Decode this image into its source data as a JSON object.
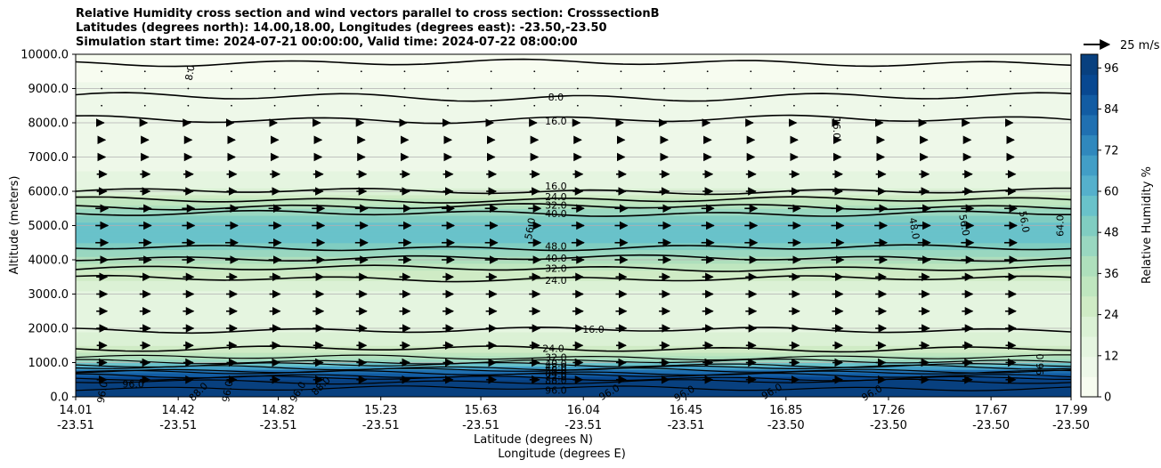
{
  "chart_data": {
    "type": "heatmap",
    "title": [
      "Relative Humidity cross section and wind vectors parallel to cross section: CrosssectionB",
      "Latitudes (degrees north): 14.00,18.00, Longitudes (degrees east): -23.50,-23.50",
      "Simulation start time: 2024-07-21 00:00:00, Valid time: 2024-07-22 08:00:00"
    ],
    "ylabel": "Altitude (meters)",
    "xlabel": "Latitude (degrees N)",
    "xlabel2": "Longitude (degrees E)",
    "ylim": [
      0,
      10000
    ],
    "xlim": [
      14.01,
      17.99
    ],
    "yticks": [
      "0.0",
      "1000.0",
      "2000.0",
      "3000.0",
      "4000.0",
      "5000.0",
      "6000.0",
      "7000.0",
      "8000.0",
      "9000.0",
      "10000.0"
    ],
    "xticks": [
      {
        "lat": "14.01",
        "lon": "-23.51"
      },
      {
        "lat": "14.42",
        "lon": "-23.51"
      },
      {
        "lat": "14.82",
        "lon": "-23.51"
      },
      {
        "lat": "15.23",
        "lon": "-23.51"
      },
      {
        "lat": "15.63",
        "lon": "-23.51"
      },
      {
        "lat": "16.04",
        "lon": "-23.51"
      },
      {
        "lat": "16.45",
        "lon": "-23.51"
      },
      {
        "lat": "16.85",
        "lon": "-23.50"
      },
      {
        "lat": "17.26",
        "lon": "-23.50"
      },
      {
        "lat": "17.67",
        "lon": "-23.50"
      },
      {
        "lat": "17.99",
        "lon": "-23.50"
      }
    ],
    "grid": "horizontal",
    "colorbar": {
      "label": "Relative Humidity %",
      "ticks": [
        "0",
        "12",
        "24",
        "36",
        "48",
        "60",
        "72",
        "84",
        "96"
      ],
      "range": [
        0,
        100
      ],
      "colors": [
        "#f7fcf0",
        "#eef8e9",
        "#e5f5e0",
        "#dbf1d5",
        "#cfebc5",
        "#bfe6bf",
        "#aedfbc",
        "#99d7c0",
        "#80cdc1",
        "#69c2ca",
        "#55b0cc",
        "#429ec6",
        "#3088bd",
        "#2070b1",
        "#125ca3",
        "#084891",
        "#08407f"
      ]
    },
    "wind_key": "25 m/s",
    "rh_profile": [
      {
        "alt": 0,
        "rh": 99
      },
      {
        "alt": 300,
        "rh": 97
      },
      {
        "alt": 600,
        "rh": 92
      },
      {
        "alt": 850,
        "rh": 70
      },
      {
        "alt": 1100,
        "rh": 38
      },
      {
        "alt": 1500,
        "rh": 24
      },
      {
        "alt": 2000,
        "rh": 16
      },
      {
        "alt": 2600,
        "rh": 12
      },
      {
        "alt": 3100,
        "rh": 18
      },
      {
        "alt": 3600,
        "rh": 28
      },
      {
        "alt": 4100,
        "rh": 42
      },
      {
        "alt": 4600,
        "rh": 56
      },
      {
        "alt": 5000,
        "rh": 58
      },
      {
        "alt": 5500,
        "rh": 40
      },
      {
        "alt": 6000,
        "rh": 20
      },
      {
        "alt": 6500,
        "rh": 12
      },
      {
        "alt": 7500,
        "rh": 10
      },
      {
        "alt": 8500,
        "rh": 8
      },
      {
        "alt": 9500,
        "rh": 5
      },
      {
        "alt": 10000,
        "rh": 3
      }
    ],
    "contour_labels": [
      {
        "text": "8.0",
        "lat": 14.48,
        "alt": 9550,
        "rot": -80
      },
      {
        "text": "8.0",
        "lat": 15.93,
        "alt": 8750,
        "rot": 0
      },
      {
        "text": "16.0",
        "lat": 15.93,
        "alt": 8050,
        "rot": 0
      },
      {
        "text": "16.0",
        "lat": 17.04,
        "alt": 7950,
        "rot": 90
      },
      {
        "text": "16.0",
        "lat": 15.93,
        "alt": 6150,
        "rot": 0
      },
      {
        "text": "24.0",
        "lat": 15.93,
        "alt": 5850,
        "rot": 0
      },
      {
        "text": "32.0",
        "lat": 15.93,
        "alt": 5600,
        "rot": 0
      },
      {
        "text": "40.0",
        "lat": 15.93,
        "alt": 5350,
        "rot": 0
      },
      {
        "text": "56.0",
        "lat": 15.84,
        "alt": 5000,
        "rot": -80
      },
      {
        "text": "48.0",
        "lat": 15.93,
        "alt": 4400,
        "rot": 0
      },
      {
        "text": "40.0",
        "lat": 15.93,
        "alt": 4050,
        "rot": 0
      },
      {
        "text": "32.0",
        "lat": 15.93,
        "alt": 3750,
        "rot": 0
      },
      {
        "text": "24.0",
        "lat": 15.93,
        "alt": 3400,
        "rot": 0
      },
      {
        "text": "48.0",
        "lat": 17.35,
        "alt": 5000,
        "rot": 80
      },
      {
        "text": "56.0",
        "lat": 17.55,
        "alt": 5100,
        "rot": 80
      },
      {
        "text": "56.0",
        "lat": 17.79,
        "alt": 5200,
        "rot": 80
      },
      {
        "text": "64.0",
        "lat": 17.96,
        "alt": 5100,
        "rot": -90
      },
      {
        "text": "16.0",
        "lat": 16.08,
        "alt": 1980,
        "rot": 0
      },
      {
        "text": "24.0",
        "lat": 15.92,
        "alt": 1420,
        "rot": 0
      },
      {
        "text": "32.0",
        "lat": 15.93,
        "alt": 1150,
        "rot": 0
      },
      {
        "text": "40.0",
        "lat": 15.93,
        "alt": 980,
        "rot": 0
      },
      {
        "text": "48.0",
        "lat": 15.93,
        "alt": 880,
        "rot": 0
      },
      {
        "text": "56.0",
        "lat": 15.93,
        "alt": 780,
        "rot": 0
      },
      {
        "text": "64.0",
        "lat": 15.93,
        "alt": 680,
        "rot": 0
      },
      {
        "text": "72.0",
        "lat": 15.93,
        "alt": 580,
        "rot": 0
      },
      {
        "text": "88.0",
        "lat": 15.93,
        "alt": 480,
        "rot": 0
      },
      {
        "text": "96.0",
        "lat": 15.93,
        "alt": 200,
        "rot": 0
      },
      {
        "text": "96.0",
        "lat": 14.24,
        "alt": 380,
        "rot": 0
      },
      {
        "text": "96.0",
        "lat": 14.13,
        "alt": 220,
        "rot": -80
      },
      {
        "text": "88.0",
        "lat": 14.51,
        "alt": 180,
        "rot": -45
      },
      {
        "text": "96.0",
        "lat": 14.63,
        "alt": 250,
        "rot": -80
      },
      {
        "text": "96.0",
        "lat": 14.91,
        "alt": 200,
        "rot": -60
      },
      {
        "text": "88.0",
        "lat": 15.0,
        "alt": 350,
        "rot": -45
      },
      {
        "text": "96.0",
        "lat": 16.15,
        "alt": 150,
        "rot": -30
      },
      {
        "text": "96.0",
        "lat": 16.45,
        "alt": 120,
        "rot": -30
      },
      {
        "text": "96.0",
        "lat": 16.8,
        "alt": 180,
        "rot": -30
      },
      {
        "text": "96.0",
        "lat": 17.2,
        "alt": 130,
        "rot": -30
      },
      {
        "text": "96.0",
        "lat": 17.88,
        "alt": 1050,
        "rot": -90
      }
    ]
  }
}
